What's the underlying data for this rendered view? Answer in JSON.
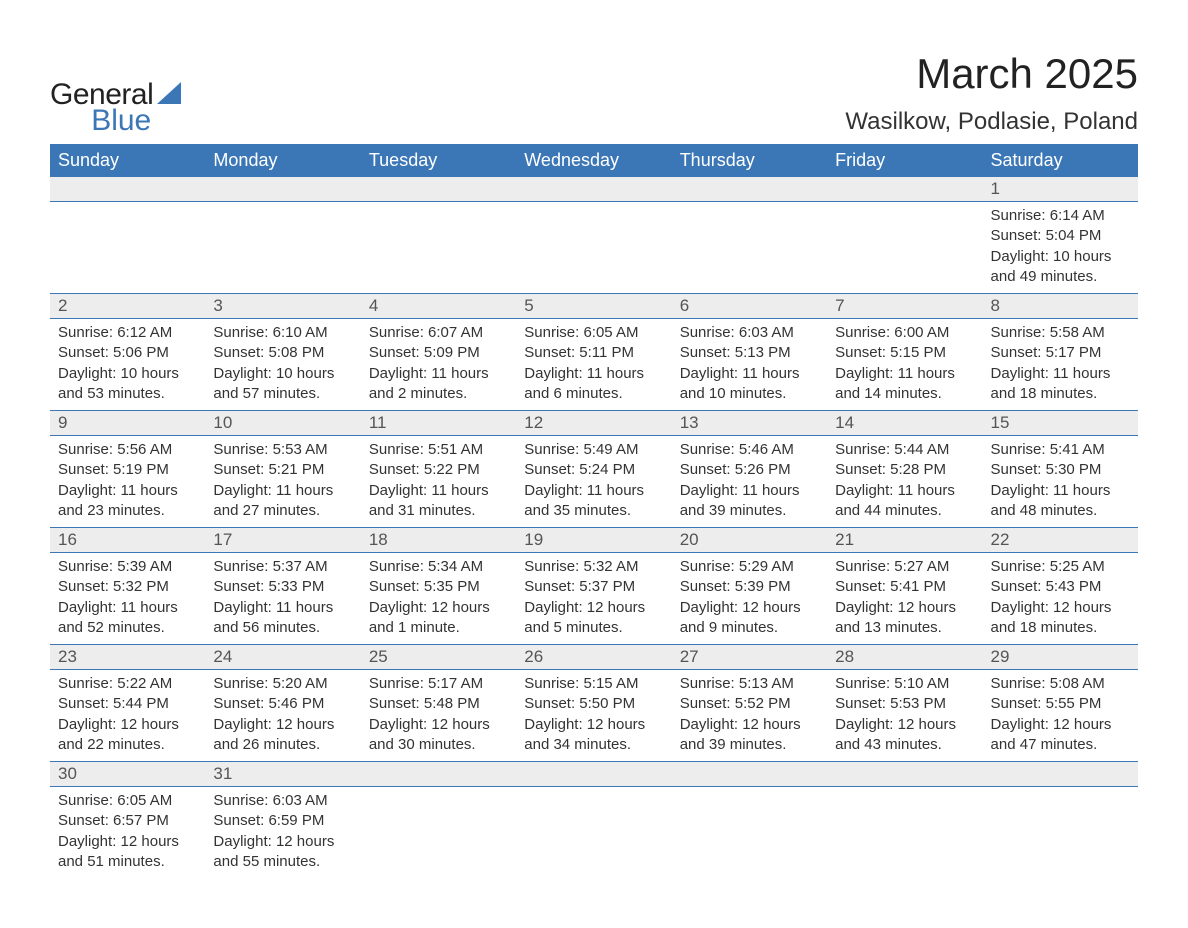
{
  "brand": {
    "word1": "General",
    "word2": "Blue",
    "shape_color": "#3b77b7"
  },
  "title": "March 2025",
  "location": "Wasilkow, Podlasie, Poland",
  "colors": {
    "header_bg": "#3b77b7",
    "header_fg": "#ffffff",
    "daynum_bg": "#ededed",
    "text": "#333333",
    "rule": "#3b77b7"
  },
  "weekdays": [
    "Sunday",
    "Monday",
    "Tuesday",
    "Wednesday",
    "Thursday",
    "Friday",
    "Saturday"
  ],
  "weeks": [
    [
      null,
      null,
      null,
      null,
      null,
      null,
      {
        "n": "1",
        "sunrise": "Sunrise: 6:14 AM",
        "sunset": "Sunset: 5:04 PM",
        "daylight1": "Daylight: 10 hours",
        "daylight2": "and 49 minutes."
      }
    ],
    [
      {
        "n": "2",
        "sunrise": "Sunrise: 6:12 AM",
        "sunset": "Sunset: 5:06 PM",
        "daylight1": "Daylight: 10 hours",
        "daylight2": "and 53 minutes."
      },
      {
        "n": "3",
        "sunrise": "Sunrise: 6:10 AM",
        "sunset": "Sunset: 5:08 PM",
        "daylight1": "Daylight: 10 hours",
        "daylight2": "and 57 minutes."
      },
      {
        "n": "4",
        "sunrise": "Sunrise: 6:07 AM",
        "sunset": "Sunset: 5:09 PM",
        "daylight1": "Daylight: 11 hours",
        "daylight2": "and 2 minutes."
      },
      {
        "n": "5",
        "sunrise": "Sunrise: 6:05 AM",
        "sunset": "Sunset: 5:11 PM",
        "daylight1": "Daylight: 11 hours",
        "daylight2": "and 6 minutes."
      },
      {
        "n": "6",
        "sunrise": "Sunrise: 6:03 AM",
        "sunset": "Sunset: 5:13 PM",
        "daylight1": "Daylight: 11 hours",
        "daylight2": "and 10 minutes."
      },
      {
        "n": "7",
        "sunrise": "Sunrise: 6:00 AM",
        "sunset": "Sunset: 5:15 PM",
        "daylight1": "Daylight: 11 hours",
        "daylight2": "and 14 minutes."
      },
      {
        "n": "8",
        "sunrise": "Sunrise: 5:58 AM",
        "sunset": "Sunset: 5:17 PM",
        "daylight1": "Daylight: 11 hours",
        "daylight2": "and 18 minutes."
      }
    ],
    [
      {
        "n": "9",
        "sunrise": "Sunrise: 5:56 AM",
        "sunset": "Sunset: 5:19 PM",
        "daylight1": "Daylight: 11 hours",
        "daylight2": "and 23 minutes."
      },
      {
        "n": "10",
        "sunrise": "Sunrise: 5:53 AM",
        "sunset": "Sunset: 5:21 PM",
        "daylight1": "Daylight: 11 hours",
        "daylight2": "and 27 minutes."
      },
      {
        "n": "11",
        "sunrise": "Sunrise: 5:51 AM",
        "sunset": "Sunset: 5:22 PM",
        "daylight1": "Daylight: 11 hours",
        "daylight2": "and 31 minutes."
      },
      {
        "n": "12",
        "sunrise": "Sunrise: 5:49 AM",
        "sunset": "Sunset: 5:24 PM",
        "daylight1": "Daylight: 11 hours",
        "daylight2": "and 35 minutes."
      },
      {
        "n": "13",
        "sunrise": "Sunrise: 5:46 AM",
        "sunset": "Sunset: 5:26 PM",
        "daylight1": "Daylight: 11 hours",
        "daylight2": "and 39 minutes."
      },
      {
        "n": "14",
        "sunrise": "Sunrise: 5:44 AM",
        "sunset": "Sunset: 5:28 PM",
        "daylight1": "Daylight: 11 hours",
        "daylight2": "and 44 minutes."
      },
      {
        "n": "15",
        "sunrise": "Sunrise: 5:41 AM",
        "sunset": "Sunset: 5:30 PM",
        "daylight1": "Daylight: 11 hours",
        "daylight2": "and 48 minutes."
      }
    ],
    [
      {
        "n": "16",
        "sunrise": "Sunrise: 5:39 AM",
        "sunset": "Sunset: 5:32 PM",
        "daylight1": "Daylight: 11 hours",
        "daylight2": "and 52 minutes."
      },
      {
        "n": "17",
        "sunrise": "Sunrise: 5:37 AM",
        "sunset": "Sunset: 5:33 PM",
        "daylight1": "Daylight: 11 hours",
        "daylight2": "and 56 minutes."
      },
      {
        "n": "18",
        "sunrise": "Sunrise: 5:34 AM",
        "sunset": "Sunset: 5:35 PM",
        "daylight1": "Daylight: 12 hours",
        "daylight2": "and 1 minute."
      },
      {
        "n": "19",
        "sunrise": "Sunrise: 5:32 AM",
        "sunset": "Sunset: 5:37 PM",
        "daylight1": "Daylight: 12 hours",
        "daylight2": "and 5 minutes."
      },
      {
        "n": "20",
        "sunrise": "Sunrise: 5:29 AM",
        "sunset": "Sunset: 5:39 PM",
        "daylight1": "Daylight: 12 hours",
        "daylight2": "and 9 minutes."
      },
      {
        "n": "21",
        "sunrise": "Sunrise: 5:27 AM",
        "sunset": "Sunset: 5:41 PM",
        "daylight1": "Daylight: 12 hours",
        "daylight2": "and 13 minutes."
      },
      {
        "n": "22",
        "sunrise": "Sunrise: 5:25 AM",
        "sunset": "Sunset: 5:43 PM",
        "daylight1": "Daylight: 12 hours",
        "daylight2": "and 18 minutes."
      }
    ],
    [
      {
        "n": "23",
        "sunrise": "Sunrise: 5:22 AM",
        "sunset": "Sunset: 5:44 PM",
        "daylight1": "Daylight: 12 hours",
        "daylight2": "and 22 minutes."
      },
      {
        "n": "24",
        "sunrise": "Sunrise: 5:20 AM",
        "sunset": "Sunset: 5:46 PM",
        "daylight1": "Daylight: 12 hours",
        "daylight2": "and 26 minutes."
      },
      {
        "n": "25",
        "sunrise": "Sunrise: 5:17 AM",
        "sunset": "Sunset: 5:48 PM",
        "daylight1": "Daylight: 12 hours",
        "daylight2": "and 30 minutes."
      },
      {
        "n": "26",
        "sunrise": "Sunrise: 5:15 AM",
        "sunset": "Sunset: 5:50 PM",
        "daylight1": "Daylight: 12 hours",
        "daylight2": "and 34 minutes."
      },
      {
        "n": "27",
        "sunrise": "Sunrise: 5:13 AM",
        "sunset": "Sunset: 5:52 PM",
        "daylight1": "Daylight: 12 hours",
        "daylight2": "and 39 minutes."
      },
      {
        "n": "28",
        "sunrise": "Sunrise: 5:10 AM",
        "sunset": "Sunset: 5:53 PM",
        "daylight1": "Daylight: 12 hours",
        "daylight2": "and 43 minutes."
      },
      {
        "n": "29",
        "sunrise": "Sunrise: 5:08 AM",
        "sunset": "Sunset: 5:55 PM",
        "daylight1": "Daylight: 12 hours",
        "daylight2": "and 47 minutes."
      }
    ],
    [
      {
        "n": "30",
        "sunrise": "Sunrise: 6:05 AM",
        "sunset": "Sunset: 6:57 PM",
        "daylight1": "Daylight: 12 hours",
        "daylight2": "and 51 minutes."
      },
      {
        "n": "31",
        "sunrise": "Sunrise: 6:03 AM",
        "sunset": "Sunset: 6:59 PM",
        "daylight1": "Daylight: 12 hours",
        "daylight2": "and 55 minutes."
      },
      null,
      null,
      null,
      null,
      null
    ]
  ]
}
